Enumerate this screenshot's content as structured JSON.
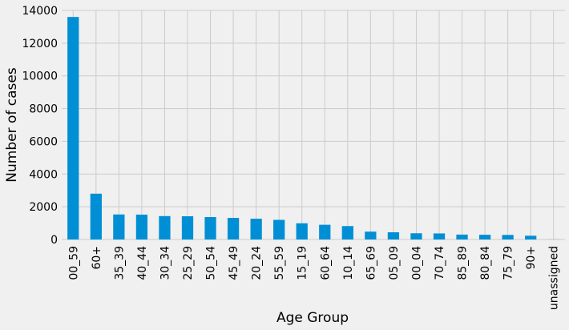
{
  "chart_data": {
    "type": "bar",
    "xlabel": "Age Group",
    "ylabel": "Number of cases",
    "categories": [
      "00_59",
      "60+",
      "35_39",
      "40_44",
      "30_34",
      "25_29",
      "50_54",
      "45_49",
      "20_24",
      "55_59",
      "15_19",
      "60_64",
      "10_14",
      "65_69",
      "05_09",
      "00_04",
      "70_74",
      "85_89",
      "80_84",
      "75_79",
      "90+",
      "unassigned"
    ],
    "values": [
      13600,
      2800,
      1530,
      1520,
      1430,
      1420,
      1370,
      1320,
      1270,
      1200,
      990,
      900,
      820,
      480,
      440,
      380,
      370,
      300,
      290,
      280,
      230,
      5
    ],
    "ylim": [
      0,
      14000
    ],
    "yticks": [
      0,
      2000,
      4000,
      6000,
      8000,
      10000,
      12000,
      14000
    ],
    "grid": true,
    "bar_color": "#008fd5",
    "background_color": "#f0f0f0",
    "grid_color": "#cbcbcb"
  }
}
